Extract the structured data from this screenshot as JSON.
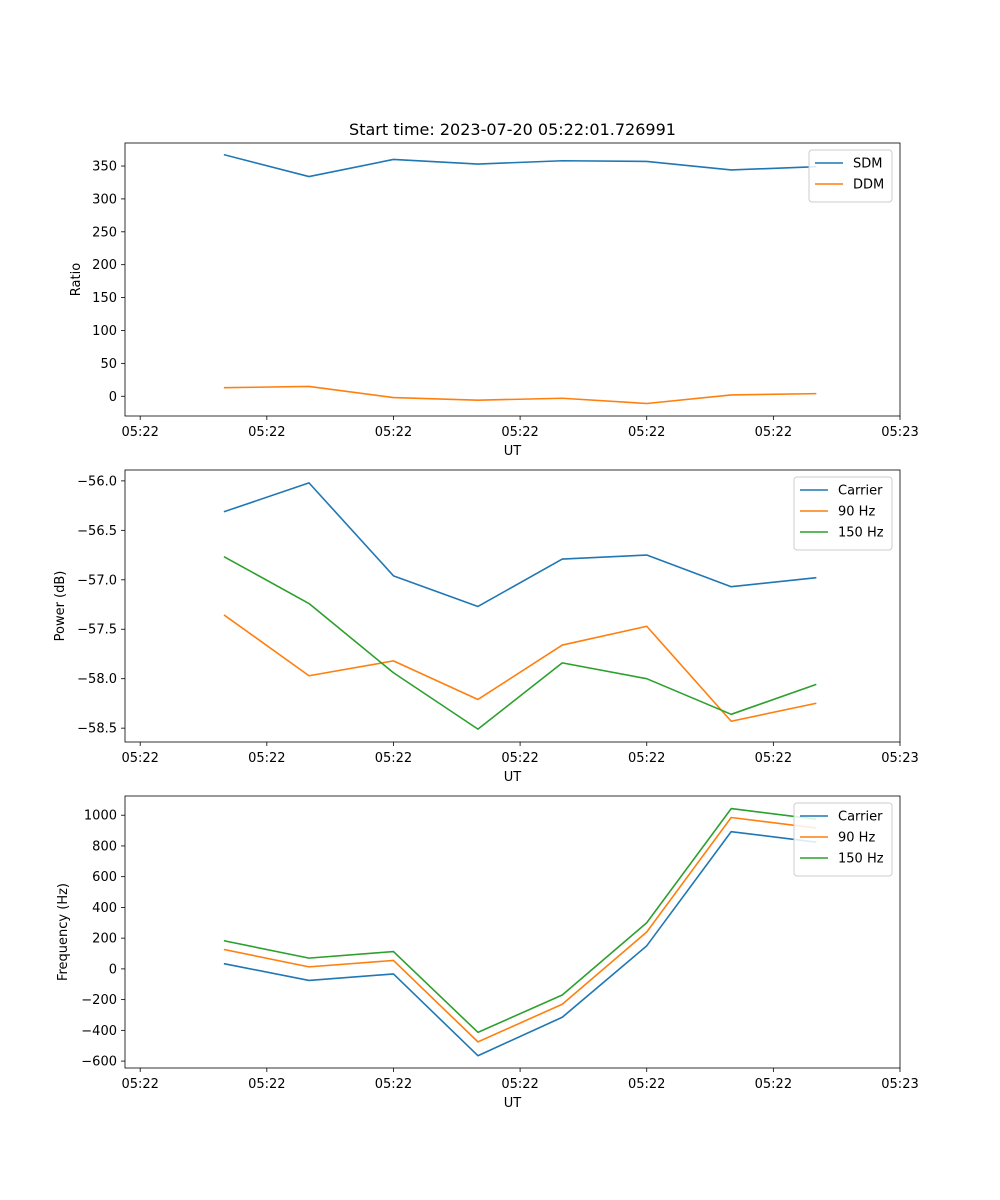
{
  "figure_title": "Start time: 2023-07-20 05:22:01.726991",
  "chart_data": [
    {
      "type": "line",
      "title": "Start time: 2023-07-20 05:22:01.726991",
      "xlabel": "UT",
      "ylabel": "Ratio",
      "x": [
        0.667,
        1.333,
        2.0,
        2.667,
        3.333,
        4.0,
        4.667,
        5.333
      ],
      "xlim": [
        -0.12,
        6.0
      ],
      "ylim": [
        -30,
        385
      ],
      "xticks": [
        0,
        1,
        2,
        3,
        4,
        5,
        6
      ],
      "xtick_labels": [
        "05:22",
        "05:22",
        "05:22",
        "05:22",
        "05:22",
        "05:22",
        "05:23"
      ],
      "yticks": [
        0,
        50,
        100,
        150,
        200,
        250,
        300,
        350
      ],
      "ytick_labels": [
        "0",
        "50",
        "100",
        "150",
        "200",
        "250",
        "300",
        "350"
      ],
      "legend_position": "top-right",
      "series": [
        {
          "name": "SDM",
          "color": "#1f77b4",
          "values": [
            367,
            334,
            360,
            353,
            358,
            357,
            344,
            349
          ]
        },
        {
          "name": "DDM",
          "color": "#ff7f0e",
          "values": [
            13,
            15,
            -2,
            -6,
            -3,
            -11,
            2,
            4
          ]
        }
      ]
    },
    {
      "type": "line",
      "title": "",
      "xlabel": "UT",
      "ylabel": "Power (dB)",
      "x": [
        0.667,
        1.333,
        2.0,
        2.667,
        3.333,
        4.0,
        4.667,
        5.333
      ],
      "xlim": [
        -0.12,
        6.0
      ],
      "ylim": [
        -58.64,
        -55.89
      ],
      "xticks": [
        0,
        1,
        2,
        3,
        4,
        5,
        6
      ],
      "xtick_labels": [
        "05:22",
        "05:22",
        "05:22",
        "05:22",
        "05:22",
        "05:22",
        "05:23"
      ],
      "yticks": [
        -58.5,
        -58.0,
        -57.5,
        -57.0,
        -56.5,
        -56.0
      ],
      "ytick_labels": [
        "−58.5",
        "−58.0",
        "−57.5",
        "−57.0",
        "−56.5",
        "−56.0"
      ],
      "legend_position": "top-right",
      "series": [
        {
          "name": "Carrier",
          "color": "#1f77b4",
          "values": [
            -56.31,
            -56.02,
            -56.96,
            -57.27,
            -56.79,
            -56.75,
            -57.07,
            -56.98
          ]
        },
        {
          "name": "90 Hz",
          "color": "#ff7f0e",
          "values": [
            -57.36,
            -57.97,
            -57.82,
            -58.21,
            -57.66,
            -57.47,
            -58.43,
            -58.25
          ]
        },
        {
          "name": "150 Hz",
          "color": "#2ca02c",
          "values": [
            -56.77,
            -57.24,
            -57.94,
            -58.51,
            -57.84,
            -58.0,
            -58.36,
            -58.06
          ]
        }
      ]
    },
    {
      "type": "line",
      "title": "",
      "xlabel": "UT",
      "ylabel": "Frequency (Hz)",
      "x": [
        0.667,
        1.333,
        2.0,
        2.667,
        3.333,
        4.0,
        4.667,
        5.333
      ],
      "xlim": [
        -0.12,
        6.0
      ],
      "ylim": [
        -645,
        1125
      ],
      "xticks": [
        0,
        1,
        2,
        3,
        4,
        5,
        6
      ],
      "xtick_labels": [
        "05:22",
        "05:22",
        "05:22",
        "05:22",
        "05:22",
        "05:22",
        "05:23"
      ],
      "yticks": [
        -600,
        -400,
        -200,
        0,
        200,
        400,
        600,
        800,
        1000
      ],
      "ytick_labels": [
        "−600",
        "−400",
        "−200",
        "0",
        "200",
        "400",
        "600",
        "800",
        "1000"
      ],
      "legend_position": "top-right",
      "series": [
        {
          "name": "Carrier",
          "color": "#1f77b4",
          "values": [
            33,
            -75,
            -33,
            -565,
            -315,
            150,
            893,
            825
          ]
        },
        {
          "name": "90 Hz",
          "color": "#ff7f0e",
          "values": [
            125,
            13,
            55,
            -475,
            -230,
            240,
            985,
            917
          ]
        },
        {
          "name": "150 Hz",
          "color": "#2ca02c",
          "values": [
            182,
            70,
            113,
            -413,
            -170,
            300,
            1043,
            975
          ]
        }
      ]
    }
  ]
}
